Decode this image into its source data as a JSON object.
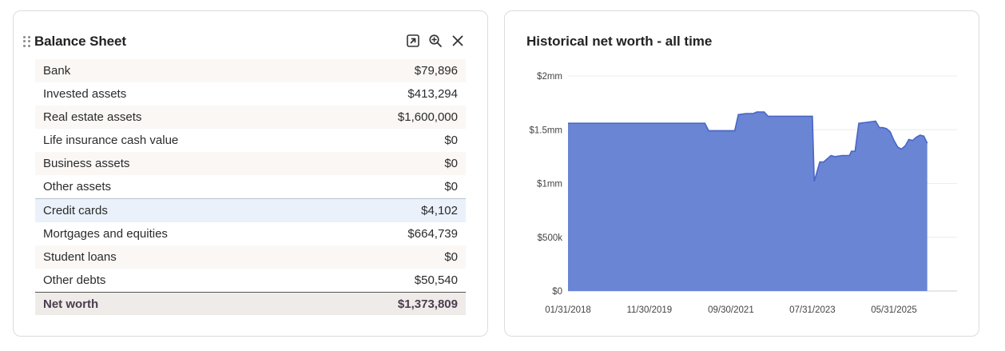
{
  "balance_sheet": {
    "title": "Balance Sheet",
    "icons": [
      "popout-icon",
      "zoom-icon",
      "close-icon"
    ],
    "rows": [
      {
        "label": "Bank",
        "value": "$79,896"
      },
      {
        "label": "Invested assets",
        "value": "$413,294"
      },
      {
        "label": "Real estate assets",
        "value": "$1,600,000"
      },
      {
        "label": "Life insurance cash value",
        "value": "$0"
      },
      {
        "label": "Business assets",
        "value": "$0"
      },
      {
        "label": "Other assets",
        "value": "$0"
      },
      {
        "label": "Credit cards",
        "value": "$4,102"
      },
      {
        "label": "Mortgages and equities",
        "value": "$664,739"
      },
      {
        "label": "Student loans",
        "value": "$0"
      },
      {
        "label": "Other debts",
        "value": "$50,540"
      }
    ],
    "total": {
      "label": "Net worth",
      "value": "$1,373,809"
    }
  },
  "net_worth_chart": {
    "title": "Historical net worth - all time"
  },
  "chart_data": {
    "type": "area",
    "title": "Historical net worth - all time",
    "color": "#6a85d4",
    "stroke": "#4a66c7",
    "ylim": [
      0,
      2000000
    ],
    "yticks": [
      0,
      500000,
      1000000,
      1500000,
      2000000
    ],
    "ytick_labels": [
      "$0",
      "$500k",
      "$1mm",
      "$1.5mm",
      "$2mm"
    ],
    "xlim": [
      "2018-01-31",
      "2026-10-31"
    ],
    "xtick_dates": [
      "2018-01-31",
      "2019-11-30",
      "2021-09-30",
      "2023-07-31",
      "2025-05-31"
    ],
    "xtick_labels": [
      "01/31/2018",
      "11/30/2019",
      "09/30/2021",
      "07/31/2023",
      "05/31/2025"
    ],
    "grid": true,
    "points": [
      [
        "2018-01-31",
        1560000
      ],
      [
        "2021-02-28",
        1560000
      ],
      [
        "2021-03-31",
        1490000
      ],
      [
        "2021-10-31",
        1490000
      ],
      [
        "2021-11-30",
        1640000
      ],
      [
        "2022-01-31",
        1650000
      ],
      [
        "2022-03-31",
        1650000
      ],
      [
        "2022-04-30",
        1665000
      ],
      [
        "2022-06-30",
        1665000
      ],
      [
        "2022-07-31",
        1625000
      ],
      [
        "2023-07-31",
        1625000
      ],
      [
        "2023-08-15",
        1020000
      ],
      [
        "2023-09-30",
        1200000
      ],
      [
        "2023-10-31",
        1200000
      ],
      [
        "2023-12-31",
        1260000
      ],
      [
        "2024-01-31",
        1250000
      ],
      [
        "2024-03-31",
        1260000
      ],
      [
        "2024-05-31",
        1260000
      ],
      [
        "2024-06-15",
        1300000
      ],
      [
        "2024-07-15",
        1300000
      ],
      [
        "2024-08-15",
        1560000
      ],
      [
        "2024-10-31",
        1570000
      ],
      [
        "2024-12-31",
        1580000
      ],
      [
        "2025-01-31",
        1520000
      ],
      [
        "2025-02-28",
        1520000
      ],
      [
        "2025-03-31",
        1510000
      ],
      [
        "2025-04-30",
        1480000
      ],
      [
        "2025-05-31",
        1400000
      ],
      [
        "2025-06-30",
        1340000
      ],
      [
        "2025-07-31",
        1320000
      ],
      [
        "2025-08-31",
        1350000
      ],
      [
        "2025-09-30",
        1410000
      ],
      [
        "2025-10-31",
        1400000
      ],
      [
        "2025-11-30",
        1430000
      ],
      [
        "2025-12-31",
        1450000
      ],
      [
        "2026-01-31",
        1440000
      ],
      [
        "2026-02-28",
        1373809
      ]
    ]
  }
}
